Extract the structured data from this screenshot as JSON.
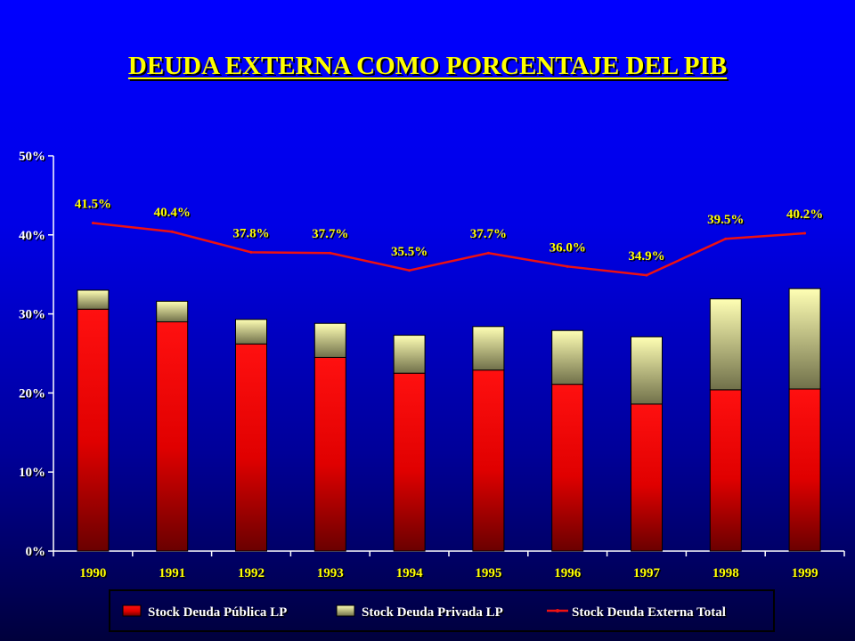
{
  "chart_data": {
    "type": "bar",
    "title": "DEUDA EXTERNA COMO PORCENTAJE DEL PIB",
    "xlabel": "",
    "ylabel": "",
    "categories": [
      "1990",
      "1991",
      "1992",
      "1993",
      "1994",
      "1995",
      "1996",
      "1997",
      "1998",
      "1999"
    ],
    "ylim": [
      0,
      50
    ],
    "yticks": [
      "0%",
      "10%",
      "20%",
      "30%",
      "40%",
      "50%"
    ],
    "stacked": true,
    "grid": false,
    "legend_position": "bottom",
    "series": [
      {
        "name": "Stock Deuda Pública LP",
        "type": "bar",
        "color": "#ff0000",
        "values": [
          30.6,
          29.0,
          26.2,
          24.5,
          22.5,
          22.9,
          21.1,
          18.6,
          20.4,
          20.5
        ]
      },
      {
        "name": "Stock Deuda Privada LP",
        "type": "bar",
        "color": "#ffffa0",
        "values": [
          2.4,
          2.6,
          3.1,
          4.3,
          4.8,
          5.5,
          6.8,
          8.5,
          11.5,
          12.7
        ]
      },
      {
        "name": "Stock Deuda Externa Total",
        "type": "line",
        "color": "#ee1111",
        "values": [
          41.5,
          40.4,
          37.8,
          37.7,
          35.5,
          37.7,
          36.0,
          34.9,
          39.5,
          40.2
        ],
        "labels": [
          "41.5%",
          "40.4%",
          "37.8%",
          "37.7%",
          "35.5%",
          "37.7%",
          "36.0%",
          "34.9%",
          "39.5%",
          "40.2%"
        ]
      }
    ]
  }
}
